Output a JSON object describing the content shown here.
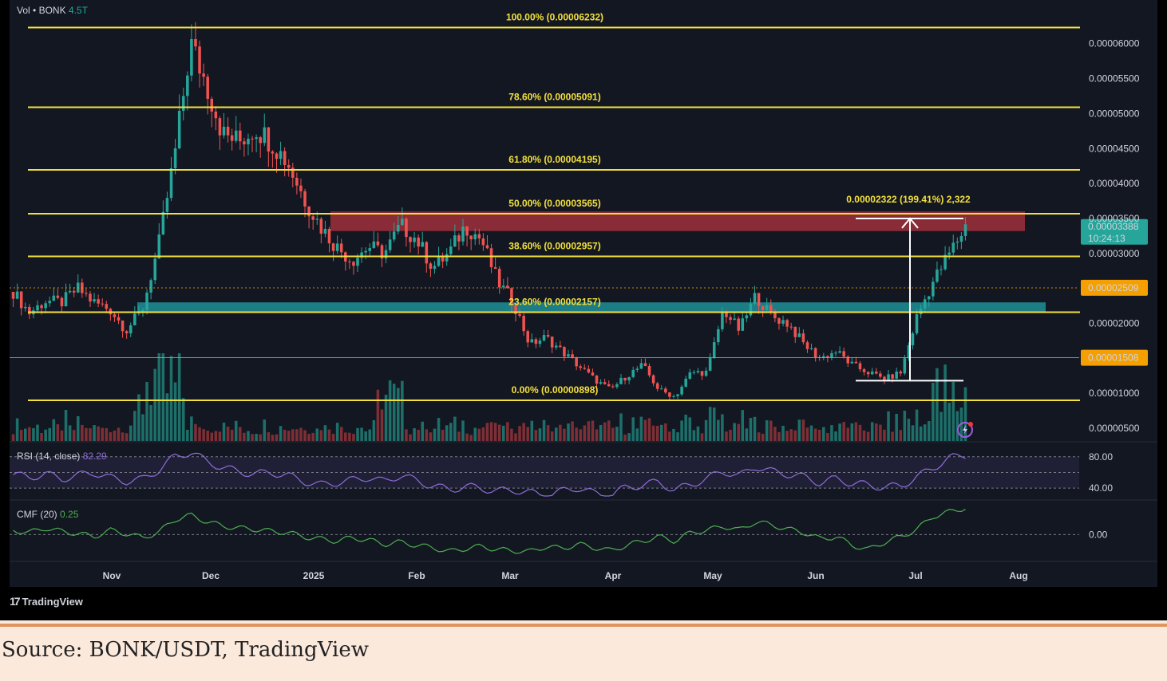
{
  "chart_data": {
    "type": "candlestick",
    "symbol_label": "BONK",
    "volume": {
      "label": "Vol",
      "value": "4.5T"
    },
    "x_ticks": [
      "Nov",
      "Dec",
      "2025",
      "Feb",
      "Mar",
      "Apr",
      "May",
      "Jun",
      "Jul",
      "Aug"
    ],
    "y_ticks": [
      "0.00006000",
      "0.00005500",
      "0.00005000",
      "0.00004500",
      "0.00004000",
      "0.00003500",
      "0.00003000",
      "0.00002000",
      "0.00001000",
      "0.00000500"
    ],
    "y_range": [
      3e-06,
      6.5e-05
    ],
    "fib_levels": [
      {
        "label": "100.00% (0.00006232)",
        "price": 6.232e-05
      },
      {
        "label": "78.60% (0.00005091)",
        "price": 5.091e-05
      },
      {
        "label": "61.80% (0.00004195)",
        "price": 4.195e-05
      },
      {
        "label": "50.00% (0.00003565)",
        "price": 3.565e-05
      },
      {
        "label": "38.60% (0.00002957)",
        "price": 2.957e-05
      },
      {
        "label": "23.60% (0.00002157)",
        "price": 2.157e-05
      },
      {
        "label": "0.00% (0.00000898)",
        "price": 8.98e-06
      }
    ],
    "resistance_zone": {
      "low": 3.32e-05,
      "high": 3.6e-05
    },
    "support_zone": {
      "low": 2.16e-05,
      "high": 2.3e-05
    },
    "price_markers": [
      {
        "label": "0.00002509",
        "price": 2.509e-05,
        "color": "#f5a000"
      },
      {
        "label": "0.00001508",
        "price": 1.508e-05,
        "color": "#f5a000"
      }
    ],
    "current_price": {
      "label": "0.00003388",
      "countdown": "10:24:13",
      "price": 3.388e-05,
      "color": "#26a69a"
    },
    "measure": {
      "label": "0.00002322 (199.41%) 2,322",
      "from": 1.18e-05,
      "to": 3.5e-05
    },
    "price_path": [
      2.45e-05,
      2.15e-05,
      2.32e-05,
      2.3e-05,
      2.5e-05,
      2.3e-05,
      2.2e-05,
      1.9e-05,
      2.2e-05,
      3.1e-05,
      4.4e-05,
      6e-05,
      5.4e-05,
      4.7e-05,
      4.6e-05,
      4.8e-05,
      4.6e-05,
      4.3e-05,
      3.8e-05,
      3.4e-05,
      3.1e-05,
      2.9e-05,
      3.1e-05,
      3e-05,
      3.4e-05,
      3.2e-05,
      2.8e-05,
      3e-05,
      3.4e-05,
      3.2e-05,
      2.6e-05,
      2.3e-05,
      1.7e-05,
      1.8e-05,
      1.6e-05,
      1.4e-05,
      1.2e-05,
      1.05e-05,
      1.25e-05,
      1.4e-05,
      1.05e-05,
      9.5e-06,
      1.3e-05,
      1.3e-05,
      2.2e-05,
      1.9e-05,
      2.4e-05,
      2.1e-05,
      2e-05,
      1.7e-05,
      1.5e-05,
      1.6e-05,
      1.4e-05,
      1.3e-05,
      1.2e-05,
      1.3e-05,
      2.1e-05,
      2.6e-05,
      3e-05,
      3.388e-05
    ],
    "rsi": {
      "label": "RSI (14, close)",
      "value": "82.29",
      "ticks": [
        "80.00",
        "40.00"
      ],
      "range": [
        30,
        95
      ]
    },
    "rsi_path": [
      57,
      54,
      58,
      52,
      56,
      60,
      53,
      49,
      51,
      63,
      80,
      86,
      74,
      66,
      61,
      58,
      60,
      56,
      49,
      44,
      47,
      50,
      54,
      48,
      57,
      49,
      43,
      38,
      42,
      40,
      36,
      38,
      34,
      31,
      36,
      41,
      33,
      31,
      41,
      44,
      48,
      37,
      45,
      52,
      62,
      55,
      68,
      61,
      58,
      54,
      47,
      52,
      46,
      44,
      41,
      43,
      54,
      66,
      78,
      82.29
    ],
    "cmf": {
      "label": "CMF (20)",
      "value": "0.25",
      "ticks": [
        "0.00"
      ],
      "range": [
        -0.22,
        0.3
      ]
    },
    "cmf_path": [
      0.04,
      0.02,
      0.06,
      0.03,
      0.01,
      -0.02,
      0.04,
      0.01,
      -0.03,
      0.02,
      0.14,
      0.18,
      0.12,
      0.08,
      0.06,
      0.05,
      0.03,
      0.02,
      -0.02,
      -0.04,
      -0.06,
      -0.03,
      -0.05,
      -0.09,
      -0.07,
      -0.1,
      -0.12,
      -0.16,
      -0.13,
      -0.11,
      -0.14,
      -0.15,
      -0.16,
      -0.11,
      -0.13,
      -0.09,
      -0.12,
      -0.15,
      -0.1,
      -0.06,
      -0.02,
      -0.06,
      0.02,
      0.04,
      0.08,
      0.04,
      0.12,
      0.09,
      0.05,
      0.02,
      -0.04,
      -0.02,
      -0.1,
      -0.14,
      -0.07,
      -0.02,
      0.05,
      0.17,
      0.21,
      0.25
    ]
  },
  "branding": {
    "logo": "17",
    "name": "TradingView"
  },
  "caption": "Source: BONK/USDT, TradingView"
}
